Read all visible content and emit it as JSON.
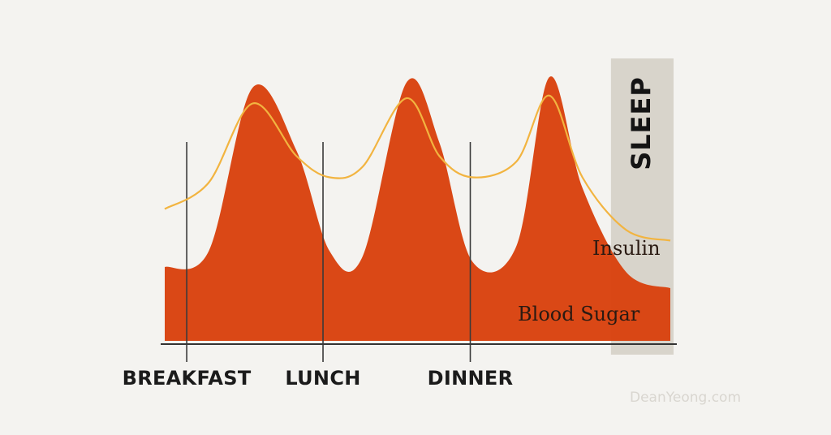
{
  "chart_data": {
    "type": "area",
    "title": "",
    "xlabel": "",
    "ylabel": "",
    "grid": false,
    "units": "relative level (0 = baseline, 100 = peak)",
    "events": [
      "BREAKFAST",
      "LUNCH",
      "DINNER"
    ],
    "sleep_label": "SLEEP",
    "series": [
      {
        "name": "Blood Sugar",
        "color": "#d9420e",
        "style": "filled area",
        "x": [
          0,
          2,
          4,
          6,
          7.5,
          9,
          11,
          12.5,
          14,
          16,
          17.5,
          19,
          21,
          23
        ],
        "values": [
          28,
          34,
          96,
          72,
          34,
          32,
          98,
          75,
          30,
          36,
          100,
          58,
          26,
          20
        ]
      },
      {
        "name": "Insulin",
        "color": "#f2b440",
        "style": "line",
        "x": [
          0,
          2,
          4,
          6,
          7.5,
          9,
          11,
          12.5,
          14,
          16,
          17.5,
          19,
          21,
          23
        ],
        "values": [
          50,
          60,
          90,
          70,
          62,
          66,
          92,
          70,
          62,
          68,
          93,
          62,
          42,
          38
        ]
      }
    ],
    "sleep_range_x": [
      20.3,
      23
    ]
  },
  "watermark": "DeanYeong.com"
}
